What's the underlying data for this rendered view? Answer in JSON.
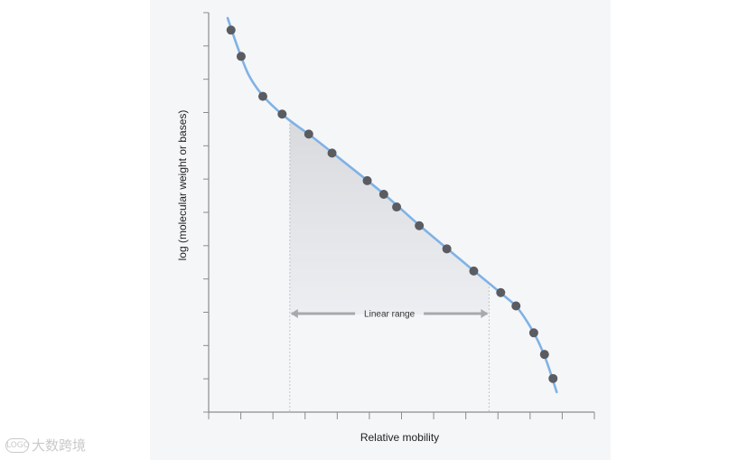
{
  "chart_data": {
    "type": "scatter",
    "xlabel": "Relative mobility",
    "ylabel": "log (molecular weight or bases)",
    "xlim": [
      0,
      12.6
    ],
    "ylim": [
      0,
      12.6
    ],
    "x_tick_count": 13,
    "y_tick_count": 13,
    "series": [
      {
        "marker_color": "#5a5c62",
        "line_color": "#7fb2e5",
        "points": [
          {
            "x": 0.73,
            "y": 12.05
          },
          {
            "x": 1.06,
            "y": 11.22
          },
          {
            "x": 1.77,
            "y": 9.96
          },
          {
            "x": 2.4,
            "y": 9.4
          },
          {
            "x": 3.27,
            "y": 8.77
          },
          {
            "x": 4.03,
            "y": 8.17
          },
          {
            "x": 5.18,
            "y": 7.3
          },
          {
            "x": 5.72,
            "y": 6.87
          },
          {
            "x": 6.14,
            "y": 6.47
          },
          {
            "x": 6.88,
            "y": 5.88
          },
          {
            "x": 7.78,
            "y": 5.15
          },
          {
            "x": 8.66,
            "y": 4.45
          },
          {
            "x": 9.54,
            "y": 3.77
          },
          {
            "x": 10.04,
            "y": 3.35
          },
          {
            "x": 10.62,
            "y": 2.5
          },
          {
            "x": 10.97,
            "y": 1.82
          },
          {
            "x": 11.25,
            "y": 1.06
          }
        ],
        "curve": [
          [
            0.62,
            12.43
          ],
          [
            0.95,
            11.5
          ],
          [
            1.3,
            10.65
          ],
          [
            1.7,
            10.06
          ],
          [
            2.1,
            9.65
          ],
          [
            2.62,
            9.22
          ],
          [
            3.4,
            8.67
          ],
          [
            4.5,
            7.83
          ],
          [
            5.7,
            6.9
          ],
          [
            6.9,
            5.88
          ],
          [
            8.0,
            4.99
          ],
          [
            9.2,
            4.03
          ],
          [
            9.7,
            3.63
          ],
          [
            10.05,
            3.33
          ],
          [
            10.4,
            2.86
          ],
          [
            10.75,
            2.26
          ],
          [
            11.05,
            1.57
          ],
          [
            11.37,
            0.63
          ]
        ]
      }
    ],
    "annotation": {
      "label": "Linear range",
      "x_start": 2.65,
      "x_end": 9.16
    }
  },
  "watermark": {
    "logo_text": "LOGO",
    "text": "大数跨境"
  }
}
